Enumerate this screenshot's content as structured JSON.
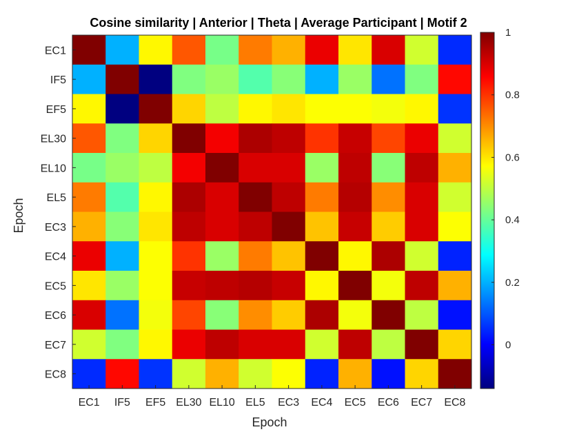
{
  "chart_data": {
    "type": "heatmap",
    "title": "Cosine similarity | Anterior | Theta | Average Participant | Motif 2",
    "xlabel": "Epoch",
    "ylabel": "Epoch",
    "x_categories": [
      "EC1",
      "IF5",
      "EF5",
      "EL30",
      "EL10",
      "EL5",
      "EC3",
      "EC4",
      "EC5",
      "EC6",
      "EC7",
      "EC8"
    ],
    "y_categories": [
      "EC1",
      "IF5",
      "EF5",
      "EL30",
      "EL10",
      "EL5",
      "EC3",
      "EC4",
      "EC5",
      "EC6",
      "EC7",
      "EC8"
    ],
    "values": [
      [
        1.0,
        0.2,
        0.58,
        0.76,
        0.42,
        0.72,
        0.66,
        0.88,
        0.6,
        0.9,
        0.52,
        0.05
      ],
      [
        0.2,
        1.0,
        -0.14,
        0.43,
        0.46,
        0.38,
        0.44,
        0.2,
        0.46,
        0.13,
        0.43,
        0.85
      ],
      [
        0.58,
        -0.14,
        1.0,
        0.62,
        0.5,
        0.58,
        0.6,
        0.57,
        0.57,
        0.56,
        0.58,
        0.06
      ],
      [
        0.76,
        0.43,
        0.62,
        1.0,
        0.87,
        0.95,
        0.93,
        0.8,
        0.92,
        0.78,
        0.88,
        0.52
      ],
      [
        0.42,
        0.46,
        0.5,
        0.87,
        1.0,
        0.9,
        0.9,
        0.46,
        0.93,
        0.44,
        0.93,
        0.66
      ],
      [
        0.72,
        0.38,
        0.58,
        0.95,
        0.9,
        1.0,
        0.93,
        0.72,
        0.94,
        0.7,
        0.9,
        0.52
      ],
      [
        0.66,
        0.44,
        0.6,
        0.93,
        0.9,
        0.93,
        1.0,
        0.64,
        0.92,
        0.63,
        0.9,
        0.57
      ],
      [
        0.88,
        0.2,
        0.57,
        0.8,
        0.46,
        0.72,
        0.64,
        1.0,
        0.58,
        0.95,
        0.52,
        0.04
      ],
      [
        0.6,
        0.46,
        0.57,
        0.92,
        0.93,
        0.94,
        0.92,
        0.58,
        1.0,
        0.56,
        0.93,
        0.66
      ],
      [
        0.9,
        0.13,
        0.56,
        0.78,
        0.44,
        0.7,
        0.63,
        0.95,
        0.56,
        1.0,
        0.5,
        0.02
      ],
      [
        0.52,
        0.43,
        0.58,
        0.88,
        0.93,
        0.9,
        0.9,
        0.52,
        0.93,
        0.5,
        1.0,
        0.62
      ],
      [
        0.05,
        0.85,
        0.06,
        0.52,
        0.66,
        0.52,
        0.57,
        0.04,
        0.66,
        0.02,
        0.62,
        1.0
      ]
    ],
    "colormap": "jet",
    "clim": [
      -0.14,
      1.0
    ],
    "colorbar_ticks": [
      0,
      0.2,
      0.4,
      0.6,
      0.8,
      1
    ],
    "colorbar_tick_labels": [
      "0",
      "0.2",
      "0.4",
      "0.6",
      "0.8",
      "1"
    ],
    "colorbar_position": "right",
    "grid": false
  }
}
